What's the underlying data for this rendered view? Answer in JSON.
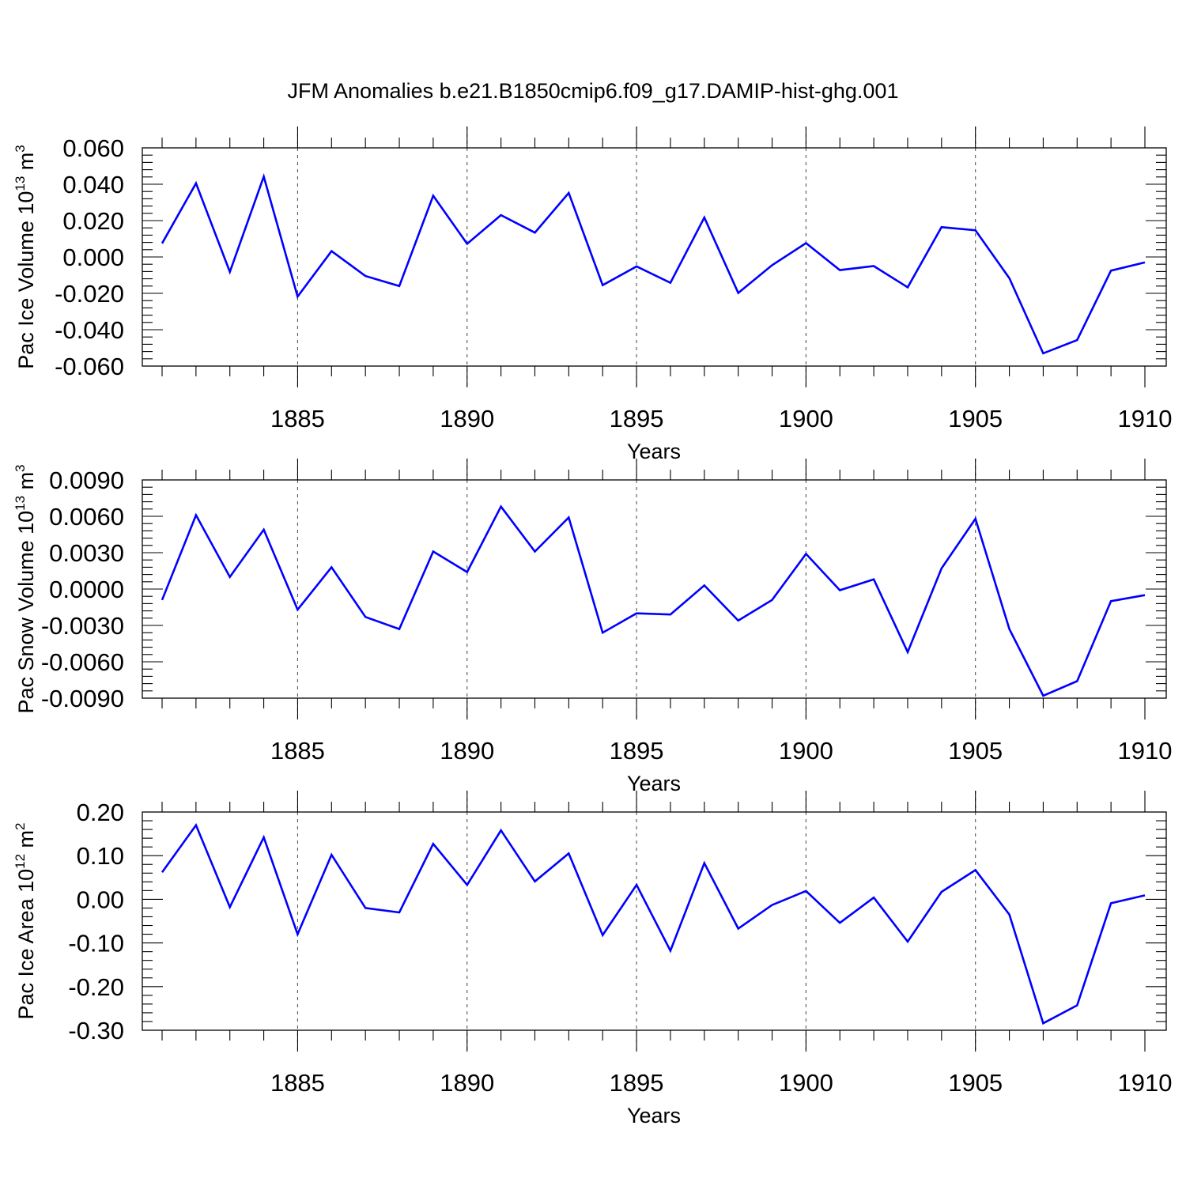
{
  "title": "JFM Anomalies b.e21.B1850cmip6.f09_g17.DAMIP-hist-ghg.001",
  "colors": {
    "line": "#0000ff",
    "axis": "#000000"
  },
  "chart_data": [
    {
      "type": "line",
      "ylabel": {
        "main": "Pac Ice Volume 10",
        "exp": "13",
        "unit": " m",
        "unit_exp": "3"
      },
      "xlabel": "Years",
      "xlim": [
        1881,
        1910
      ],
      "ylim": [
        -0.06,
        0.06
      ],
      "yticks": [
        -0.06,
        -0.04,
        -0.02,
        0.0,
        0.02,
        0.04,
        0.06
      ],
      "ytick_labels": [
        "-0.060",
        "-0.040",
        "-0.020",
        "0.000",
        "0.020",
        "0.040",
        "0.060"
      ],
      "xticks": [
        1885,
        1890,
        1895,
        1900,
        1905,
        1910
      ],
      "xtick_labels": [
        "1885",
        "1890",
        "1895",
        "1900",
        "1905",
        "1910"
      ],
      "grid_x": [
        1885,
        1890,
        1895,
        1900,
        1905
      ],
      "series": [
        {
          "name": "Pac Ice Volume",
          "x": [
            1881,
            1882,
            1883,
            1884,
            1885,
            1886,
            1887,
            1888,
            1889,
            1890,
            1891,
            1892,
            1893,
            1894,
            1895,
            1896,
            1897,
            1898,
            1899,
            1900,
            1901,
            1902,
            1903,
            1904,
            1905,
            1906,
            1907,
            1908,
            1909,
            1910
          ],
          "values": [
            0.0075,
            0.0405,
            -0.0082,
            0.0442,
            -0.0218,
            0.0032,
            -0.0105,
            -0.016,
            0.0337,
            0.0072,
            0.023,
            0.0134,
            0.0352,
            -0.0155,
            -0.0052,
            -0.0142,
            0.0217,
            -0.0198,
            -0.0045,
            0.0076,
            -0.0072,
            -0.005,
            -0.0167,
            0.0164,
            0.0147,
            -0.0117,
            -0.053,
            -0.0457,
            -0.0075,
            -0.003
          ]
        }
      ]
    },
    {
      "type": "line",
      "ylabel": {
        "main": "Pac Snow Volume 10",
        "exp": "13",
        "unit": " m",
        "unit_exp": "3"
      },
      "xlabel": "Years",
      "xlim": [
        1881,
        1910
      ],
      "ylim": [
        -0.009,
        0.009
      ],
      "yticks": [
        -0.009,
        -0.006,
        -0.003,
        0.0,
        0.003,
        0.006,
        0.009
      ],
      "ytick_labels": [
        "-0.0090",
        "-0.0060",
        "-0.0030",
        "0.0000",
        "0.0030",
        "0.0060",
        "0.0090"
      ],
      "xticks": [
        1885,
        1890,
        1895,
        1900,
        1905,
        1910
      ],
      "xtick_labels": [
        "1885",
        "1890",
        "1895",
        "1900",
        "1905",
        "1910"
      ],
      "grid_x": [
        1885,
        1890,
        1895,
        1900,
        1905
      ],
      "series": [
        {
          "name": "Pac Snow Volume",
          "x": [
            1881,
            1882,
            1883,
            1884,
            1885,
            1886,
            1887,
            1888,
            1889,
            1890,
            1891,
            1892,
            1893,
            1894,
            1895,
            1896,
            1897,
            1898,
            1899,
            1900,
            1901,
            1902,
            1903,
            1904,
            1905,
            1906,
            1907,
            1908,
            1909,
            1910
          ],
          "values": [
            -0.0009,
            0.0061,
            0.001,
            0.0049,
            -0.0017,
            0.0018,
            -0.0023,
            -0.0033,
            0.0031,
            0.0014,
            0.0068,
            0.0031,
            0.0059,
            -0.0036,
            -0.002,
            -0.0021,
            0.0003,
            -0.0026,
            -0.0009,
            0.0029,
            -0.0001,
            0.0008,
            -0.0052,
            0.0017,
            0.0058,
            -0.0033,
            -0.0088,
            -0.0076,
            -0.001,
            -0.0005
          ]
        }
      ]
    },
    {
      "type": "line",
      "ylabel": {
        "main": "Pac Ice Area 10",
        "exp": "12",
        "unit": " m",
        "unit_exp": "2"
      },
      "xlabel": "Years",
      "xlim": [
        1881,
        1910
      ],
      "ylim": [
        -0.3,
        0.2
      ],
      "yticks": [
        -0.3,
        -0.2,
        -0.1,
        0.0,
        0.1,
        0.2
      ],
      "ytick_labels": [
        "-0.30",
        "-0.20",
        "-0.10",
        "0.00",
        "0.10",
        "0.20"
      ],
      "xticks": [
        1885,
        1890,
        1895,
        1900,
        1905,
        1910
      ],
      "xtick_labels": [
        "1885",
        "1890",
        "1895",
        "1900",
        "1905",
        "1910"
      ],
      "grid_x": [
        1885,
        1890,
        1895,
        1900,
        1905
      ],
      "series": [
        {
          "name": "Pac Ice Area",
          "x": [
            1881,
            1882,
            1883,
            1884,
            1885,
            1886,
            1887,
            1888,
            1889,
            1890,
            1891,
            1892,
            1893,
            1894,
            1895,
            1896,
            1897,
            1898,
            1899,
            1900,
            1901,
            1902,
            1903,
            1904,
            1905,
            1906,
            1907,
            1908,
            1909,
            1910
          ],
          "values": [
            0.062,
            0.17,
            -0.018,
            0.142,
            -0.08,
            0.102,
            -0.02,
            -0.03,
            0.127,
            0.033,
            0.158,
            0.041,
            0.105,
            -0.082,
            0.033,
            -0.118,
            0.083,
            -0.067,
            -0.013,
            0.019,
            -0.054,
            0.004,
            -0.097,
            0.017,
            0.067,
            -0.035,
            -0.284,
            -0.243,
            -0.009,
            0.009
          ]
        }
      ]
    }
  ]
}
